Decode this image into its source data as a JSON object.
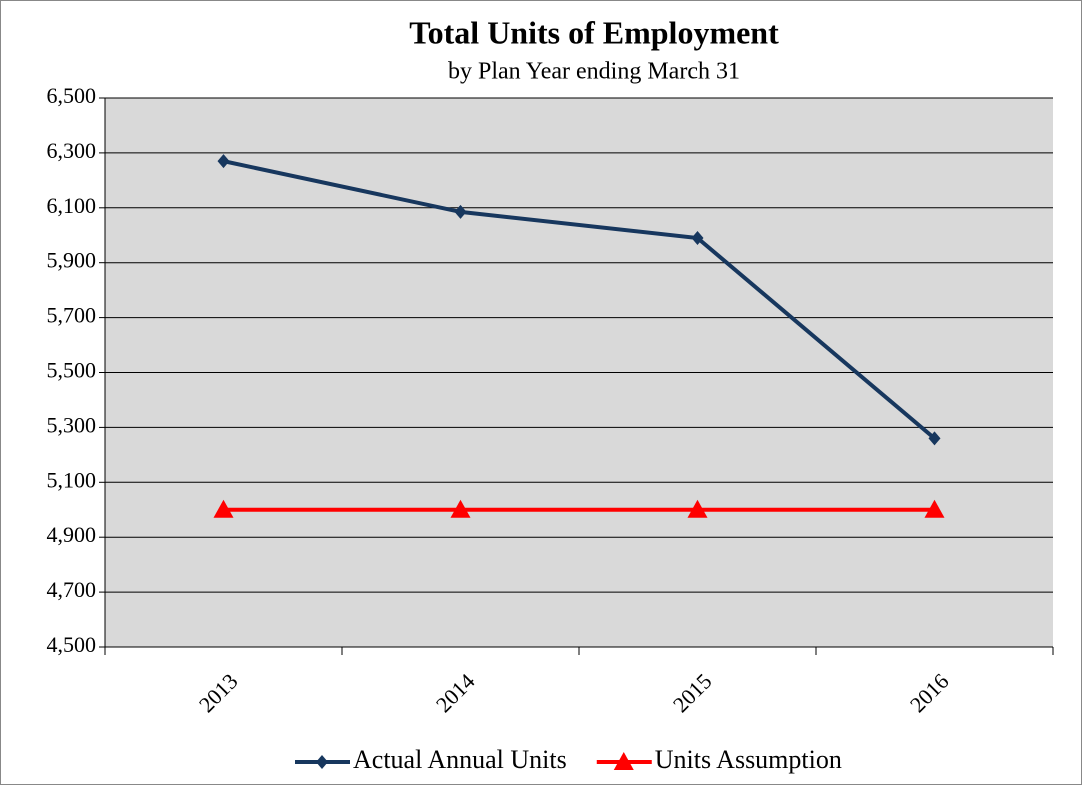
{
  "chart_data": {
    "type": "line",
    "title": "Total Units of Employment",
    "subtitle": "by Plan Year ending March 31",
    "categories": [
      "2013",
      "2014",
      "2015",
      "2016"
    ],
    "series": [
      {
        "name": "Actual Annual Units",
        "color": "#17375e",
        "marker": "diamond",
        "values": [
          6270,
          6085,
          5990,
          5260
        ]
      },
      {
        "name": "Units Assumption",
        "color": "#ff0000",
        "marker": "triangle",
        "values": [
          5000,
          5000,
          5000,
          5000
        ]
      }
    ],
    "ylim": [
      4500,
      6500
    ],
    "yticks": [
      {
        "value": 4500,
        "label": "4,500"
      },
      {
        "value": 4700,
        "label": "4,700"
      },
      {
        "value": 4900,
        "label": "4,900"
      },
      {
        "value": 5100,
        "label": "5,100"
      },
      {
        "value": 5300,
        "label": "5,300"
      },
      {
        "value": 5500,
        "label": "5,500"
      },
      {
        "value": 5700,
        "label": "5,700"
      },
      {
        "value": 5900,
        "label": "5,900"
      },
      {
        "value": 6100,
        "label": "6,100"
      },
      {
        "value": 6300,
        "label": "6,300"
      },
      {
        "value": 6500,
        "label": "6,500"
      }
    ],
    "grid": true,
    "legend": "bottom"
  }
}
